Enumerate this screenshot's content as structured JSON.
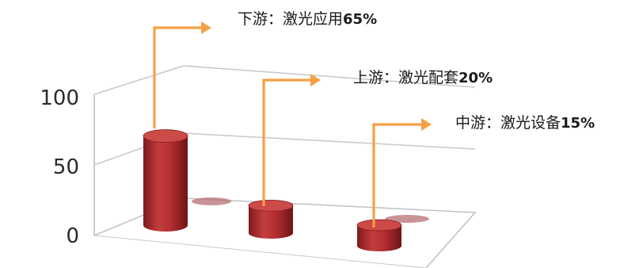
{
  "chart_data": {
    "type": "bar",
    "style": "3d-cylinder",
    "categories": [
      "下游：激光应用",
      "上游：激光配套",
      "中游：激光设备"
    ],
    "values": [
      65,
      20,
      15
    ],
    "value_labels": [
      "65%",
      "20%",
      "15%"
    ],
    "ylim": [
      0,
      100
    ],
    "yticks": [
      "0",
      "50",
      "100"
    ],
    "xlabel": "",
    "ylabel": "",
    "title": "",
    "grid": true,
    "colors": {
      "bar": "#a8262a",
      "bar_light": "#cc4a48",
      "arrow": "#f5a046",
      "grid": "#c8c8c8",
      "shadow": "#b87074"
    }
  }
}
